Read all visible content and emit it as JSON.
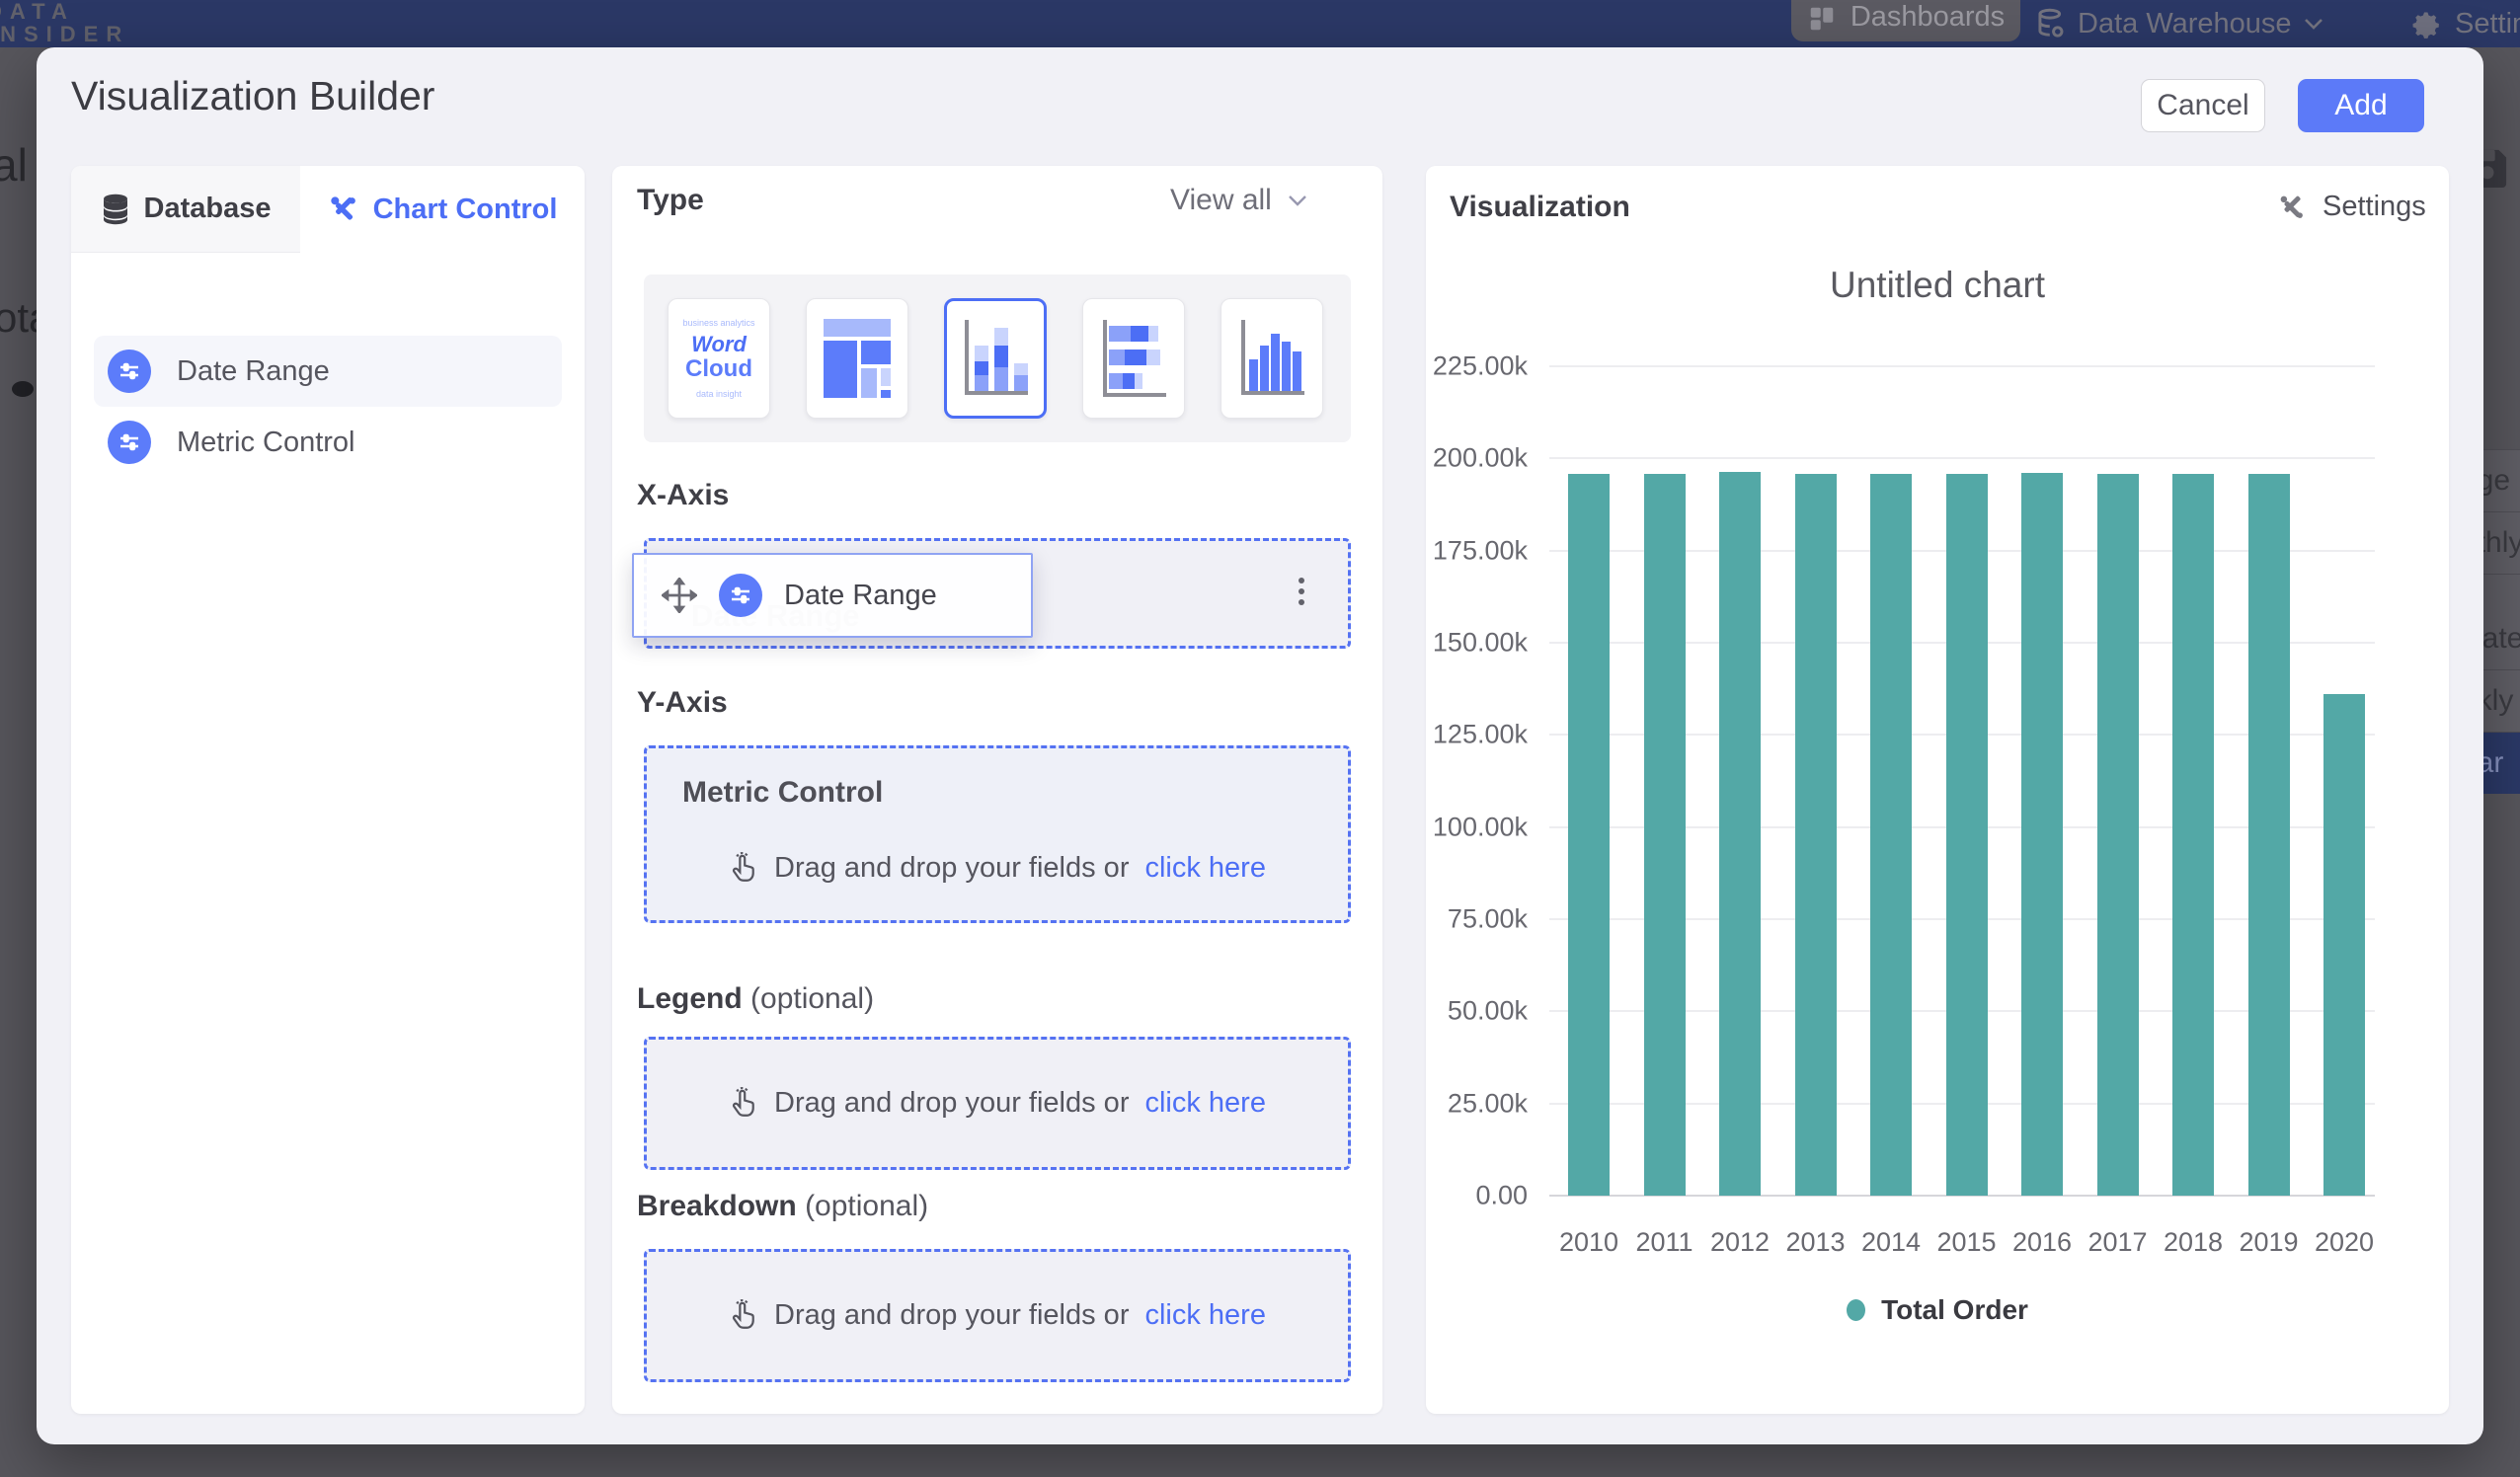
{
  "background": {
    "logo_line1": "DATA",
    "logo_line2": "INSIDER",
    "nav": {
      "dashboards": "Dashboards",
      "data_warehouse": "Data Warehouse",
      "settings": "Settings"
    },
    "fragments": {
      "left_a": "al",
      "left_b": "ota"
    },
    "dropdown_items": [
      "nge",
      "nthly",
      "k Date",
      "ekly",
      "ear"
    ],
    "dropdown_selected_index": 4
  },
  "modal": {
    "title": "Visualization Builder",
    "cancel_label": "Cancel",
    "add_label": "Add",
    "left_panel": {
      "tabs": [
        {
          "label": "Database"
        },
        {
          "label": "Chart Control"
        }
      ],
      "active_tab": "Chart Control",
      "fields": [
        {
          "label": "Date Range"
        },
        {
          "label": "Metric Control"
        }
      ]
    },
    "builder": {
      "type_label": "Type",
      "view_all_label": "View all",
      "chart_types": [
        "Word Cloud",
        "Treemap",
        "Stacked Column",
        "Stacked Bar",
        "Column"
      ],
      "selected_type_index": 2,
      "thumbnails": {
        "word_line1": "Word",
        "word_line2": "Cloud"
      },
      "drop_text": "Drag and drop your fields or",
      "drop_link": "click here",
      "x_axis": {
        "label": "X-Axis",
        "chip_label": "Date Range"
      },
      "y_axis": {
        "label": "Y-Axis",
        "control_label": "Metric Control"
      },
      "legend": {
        "label": "Legend",
        "optional_label": "(optional)"
      },
      "breakdown": {
        "label": "Breakdown",
        "optional_label": "(optional)"
      }
    },
    "visualization": {
      "panel_title": "Visualization",
      "settings_label": "Settings"
    }
  },
  "chart_data": {
    "type": "bar",
    "title": "Untitled chart",
    "categories": [
      "2010",
      "2011",
      "2012",
      "2013",
      "2014",
      "2015",
      "2016",
      "2017",
      "2018",
      "2019",
      "2020"
    ],
    "series": [
      {
        "name": "Total Order",
        "values": [
          195800,
          195700,
          196300,
          195900,
          195700,
          195800,
          196100,
          195900,
          195700,
          195800,
          136100
        ]
      }
    ],
    "ylim": [
      0,
      225000
    ],
    "ytick_labels": [
      "0.00",
      "25.00k",
      "50.00k",
      "75.00k",
      "100.00k",
      "125.00k",
      "150.00k",
      "175.00k",
      "200.00k",
      "225.00k"
    ],
    "ytick_step": 25000,
    "bar_color": "#53a8a6",
    "grid": true,
    "legend_position": "bottom"
  }
}
